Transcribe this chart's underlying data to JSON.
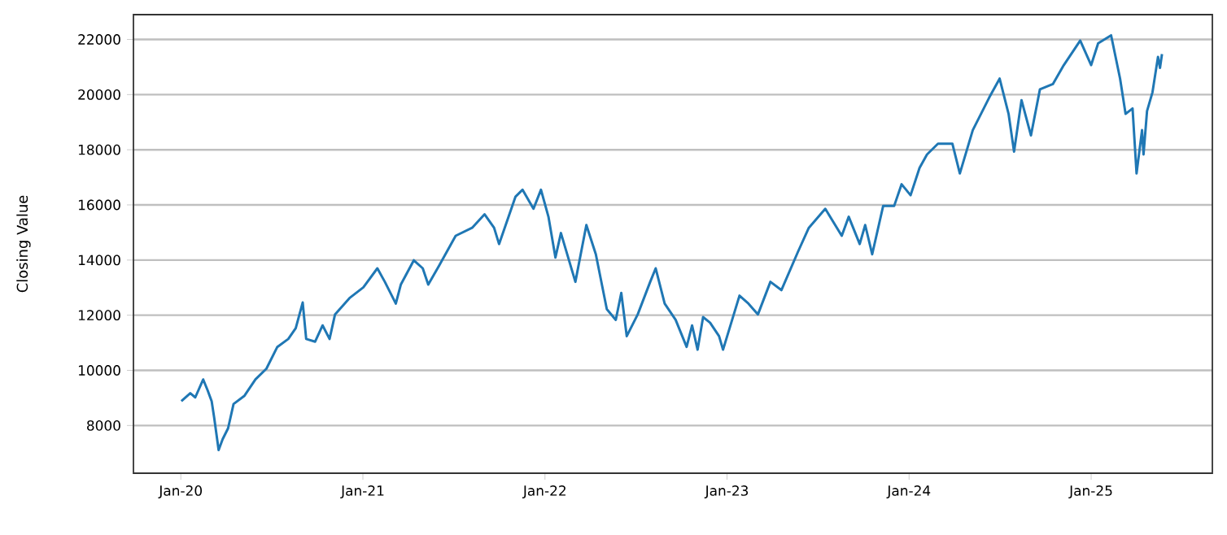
{
  "chart_data": {
    "type": "line",
    "ylabel": "Closing Value",
    "grid": "y",
    "xlim": [
      "2019-09-28",
      "2025-09-01"
    ],
    "ylim": [
      6270,
      22900
    ],
    "xticks": [
      {
        "value": "2020-01",
        "label": "Jan-20"
      },
      {
        "value": "2021-01",
        "label": "Jan-21"
      },
      {
        "value": "2022-01",
        "label": "Jan-22"
      },
      {
        "value": "2023-01",
        "label": "Jan-23"
      },
      {
        "value": "2024-01",
        "label": "Jan-24"
      },
      {
        "value": "2025-01",
        "label": "Jan-25"
      }
    ],
    "yticks": [
      8000,
      10000,
      12000,
      14000,
      16000,
      18000,
      20000,
      22000
    ],
    "series": [
      {
        "color": "#1f77b4",
        "x": [
          "2020-01-02",
          "2020-01-20",
          "2020-01-30",
          "2020-02-15",
          "2020-02-24",
          "2020-03-03",
          "2020-03-08",
          "2020-03-17",
          "2020-03-25",
          "2020-04-05",
          "2020-04-16",
          "2020-05-08",
          "2020-05-30",
          "2020-06-21",
          "2020-07-13",
          "2020-08-04",
          "2020-08-19",
          "2020-09-02",
          "2020-09-09",
          "2020-09-27",
          "2020-10-12",
          "2020-10-26",
          "2020-11-06",
          "2020-12-05",
          "2021-01-02",
          "2021-01-30",
          "2021-02-14",
          "2021-03-08",
          "2021-03-18",
          "2021-04-13",
          "2021-05-01",
          "2021-05-12",
          "2021-06-03",
          "2021-07-06",
          "2021-08-08",
          "2021-09-02",
          "2021-09-21",
          "2021-10-01",
          "2021-11-03",
          "2021-11-17",
          "2021-12-09",
          "2021-12-24",
          "2022-01-08",
          "2022-01-22",
          "2022-02-02",
          "2022-03-03",
          "2022-03-25",
          "2022-04-13",
          "2022-05-05",
          "2022-05-23",
          "2022-06-03",
          "2022-06-14",
          "2022-07-06",
          "2022-07-31",
          "2022-08-11",
          "2022-08-29",
          "2022-09-20",
          "2022-10-12",
          "2022-10-23",
          "2022-11-03",
          "2022-11-14",
          "2022-11-28",
          "2022-12-16",
          "2022-12-24",
          "2023-01-26",
          "2023-02-13",
          "2023-03-04",
          "2023-03-29",
          "2023-04-20",
          "2023-05-23",
          "2023-06-14",
          "2023-07-17",
          "2023-08-19",
          "2023-09-02",
          "2023-09-24",
          "2023-10-05",
          "2023-10-19",
          "2023-11-10",
          "2023-12-02",
          "2023-12-17",
          "2024-01-04",
          "2024-01-22",
          "2024-02-06",
          "2024-02-28",
          "2024-03-28",
          "2024-04-12",
          "2024-05-08",
          "2024-06-10",
          "2024-07-01",
          "2024-07-19",
          "2024-07-30",
          "2024-08-14",
          "2024-09-02",
          "2024-09-20",
          "2024-10-16",
          "2024-11-07",
          "2024-12-10",
          "2025-01-01",
          "2025-01-15",
          "2025-02-10",
          "2025-02-28",
          "2025-03-11",
          "2025-03-25",
          "2025-04-02",
          "2025-04-13",
          "2025-04-16",
          "2025-04-23",
          "2025-05-04",
          "2025-05-15",
          "2025-05-19",
          "2025-05-23"
        ],
        "values": [
          8880,
          9170,
          9020,
          9670,
          9270,
          8880,
          8290,
          7110,
          7500,
          7900,
          8780,
          9080,
          9670,
          10060,
          10850,
          11140,
          11530,
          12460,
          11140,
          11040,
          11630,
          11140,
          12030,
          12620,
          13010,
          13700,
          13210,
          12420,
          13110,
          13990,
          13700,
          13110,
          13800,
          14880,
          15170,
          15660,
          15170,
          14580,
          16300,
          16550,
          15860,
          16550,
          15570,
          14090,
          14980,
          13210,
          15270,
          14210,
          12220,
          11830,
          12810,
          11240,
          12030,
          13210,
          13700,
          12420,
          11830,
          10850,
          11630,
          10750,
          11930,
          11730,
          11240,
          10750,
          12710,
          12420,
          12030,
          13210,
          12910,
          14290,
          15170,
          15860,
          14880,
          15570,
          14580,
          15270,
          14210,
          15960,
          15960,
          16750,
          16350,
          17340,
          17830,
          18220,
          18220,
          17140,
          18710,
          19890,
          20580,
          19300,
          17930,
          19800,
          18520,
          20190,
          20380,
          21070,
          21960,
          21070,
          21860,
          22150,
          20580,
          19300,
          19500,
          17140,
          18710,
          17830,
          19400,
          20090,
          21370,
          20970,
          21470
        ]
      }
    ]
  }
}
